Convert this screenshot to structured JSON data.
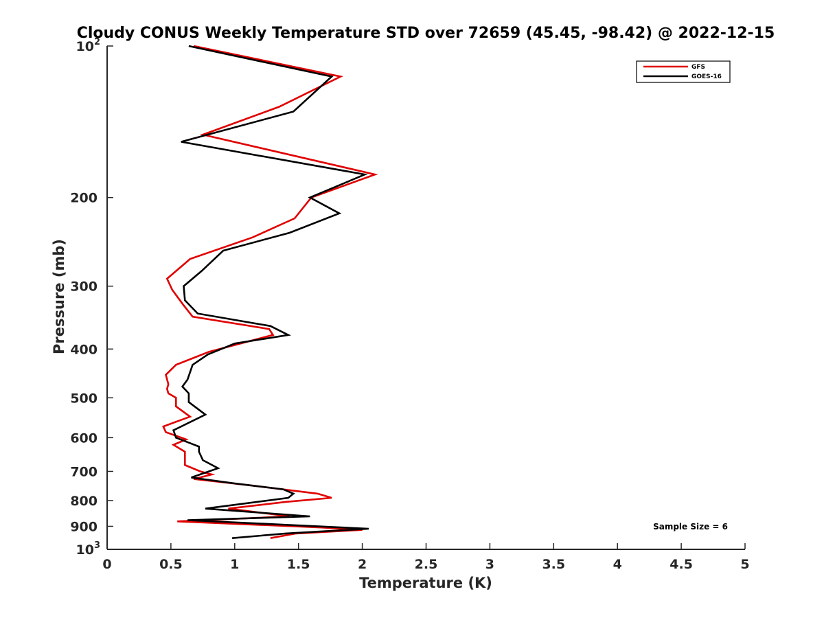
{
  "chart_data": {
    "type": "line",
    "title": "Cloudy CONUS Weekly Temperature STD over 72659 (45.45, -98.42) @ 2022-12-15",
    "xlabel": "Temperature (K)",
    "ylabel": "Pressure (mb)",
    "xlim": [
      0,
      5
    ],
    "ylim": [
      100,
      1000
    ],
    "y_scale": "log",
    "y_reversed": true,
    "x_ticks": [
      {
        "value": 0,
        "label": "0"
      },
      {
        "value": 0.5,
        "label": "0.5"
      },
      {
        "value": 1,
        "label": "1"
      },
      {
        "value": 1.5,
        "label": "1.5"
      },
      {
        "value": 2,
        "label": "2"
      },
      {
        "value": 2.5,
        "label": "2.5"
      },
      {
        "value": 3,
        "label": "3"
      },
      {
        "value": 3.5,
        "label": "3.5"
      },
      {
        "value": 4,
        "label": "4"
      },
      {
        "value": 4.5,
        "label": "4.5"
      },
      {
        "value": 5,
        "label": "5"
      }
    ],
    "y_ticks": [
      {
        "value": 100,
        "base": "10",
        "exp": "2"
      },
      {
        "value": 200,
        "label": "200"
      },
      {
        "value": 300,
        "label": "300"
      },
      {
        "value": 400,
        "label": "400"
      },
      {
        "value": 500,
        "label": "500"
      },
      {
        "value": 600,
        "label": "600"
      },
      {
        "value": 700,
        "label": "700"
      },
      {
        "value": 800,
        "label": "800"
      },
      {
        "value": 900,
        "label": "900"
      },
      {
        "value": 1000,
        "base": "10",
        "exp": "3"
      }
    ],
    "grid": false,
    "legend_position": "top-right",
    "series": [
      {
        "name": "GFS",
        "color": "#e00000",
        "points": [
          [
            0.68,
            100
          ],
          [
            1.83,
            115
          ],
          [
            1.35,
            132
          ],
          [
            0.75,
            150
          ],
          [
            2.1,
            180
          ],
          [
            1.6,
            200
          ],
          [
            1.47,
            220
          ],
          [
            1.14,
            240
          ],
          [
            0.65,
            265
          ],
          [
            0.47,
            290
          ],
          [
            0.51,
            305
          ],
          [
            0.59,
            325
          ],
          [
            0.67,
            345
          ],
          [
            1.27,
            365
          ],
          [
            1.3,
            375
          ],
          [
            0.8,
            405
          ],
          [
            0.54,
            430
          ],
          [
            0.46,
            450
          ],
          [
            0.48,
            470
          ],
          [
            0.47,
            480
          ],
          [
            0.48,
            490
          ],
          [
            0.54,
            500
          ],
          [
            0.54,
            520
          ],
          [
            0.65,
            545
          ],
          [
            0.44,
            570
          ],
          [
            0.46,
            585
          ],
          [
            0.62,
            605
          ],
          [
            0.52,
            620
          ],
          [
            0.61,
            640
          ],
          [
            0.61,
            660
          ],
          [
            0.61,
            680
          ],
          [
            0.73,
            700
          ],
          [
            0.82,
            710
          ],
          [
            0.68,
            725
          ],
          [
            1.1,
            745
          ],
          [
            1.65,
            775
          ],
          [
            1.76,
            790
          ],
          [
            1.4,
            805
          ],
          [
            0.95,
            830
          ],
          [
            1.43,
            860
          ],
          [
            0.55,
            880
          ],
          [
            1.68,
            905
          ],
          [
            2.0,
            915
          ],
          [
            1.48,
            930
          ],
          [
            1.28,
            950
          ]
        ]
      },
      {
        "name": "GOES-16",
        "color": "#000000",
        "points": [
          [
            0.64,
            100
          ],
          [
            1.76,
            115
          ],
          [
            1.46,
            135
          ],
          [
            0.58,
            155
          ],
          [
            2.02,
            180
          ],
          [
            1.59,
            200
          ],
          [
            1.82,
            215
          ],
          [
            1.43,
            235
          ],
          [
            0.91,
            255
          ],
          [
            0.74,
            280
          ],
          [
            0.6,
            300
          ],
          [
            0.61,
            320
          ],
          [
            0.71,
            340
          ],
          [
            1.28,
            360
          ],
          [
            1.42,
            375
          ],
          [
            1.0,
            390
          ],
          [
            0.79,
            410
          ],
          [
            0.67,
            430
          ],
          [
            0.63,
            460
          ],
          [
            0.59,
            475
          ],
          [
            0.64,
            490
          ],
          [
            0.64,
            510
          ],
          [
            0.77,
            540
          ],
          [
            0.52,
            580
          ],
          [
            0.54,
            600
          ],
          [
            0.72,
            625
          ],
          [
            0.72,
            640
          ],
          [
            0.75,
            665
          ],
          [
            0.87,
            690
          ],
          [
            0.66,
            720
          ],
          [
            1.0,
            740
          ],
          [
            1.38,
            760
          ],
          [
            1.46,
            775
          ],
          [
            1.42,
            790
          ],
          [
            0.77,
            830
          ],
          [
            1.59,
            860
          ],
          [
            0.63,
            875
          ],
          [
            2.05,
            910
          ],
          [
            1.4,
            930
          ],
          [
            0.98,
            950
          ]
        ]
      }
    ],
    "annotation": "Sample Size = 6"
  }
}
